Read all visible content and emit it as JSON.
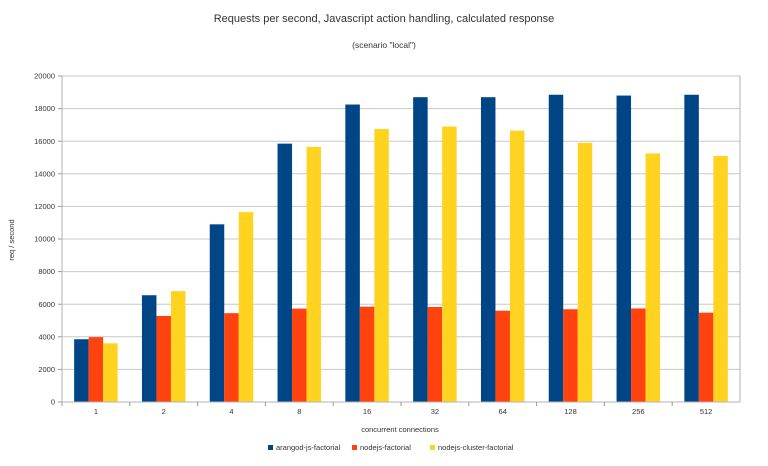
{
  "chart_data": {
    "type": "bar",
    "title": "Requests per second, Javascript action handling, calculated response",
    "subtitle": "(scenario \"local\")",
    "xlabel": "concurrent connections",
    "ylabel": "req / second",
    "ylim": [
      0,
      20000
    ],
    "yticks": [
      0,
      2000,
      4000,
      6000,
      8000,
      10000,
      12000,
      14000,
      16000,
      18000,
      20000
    ],
    "grid": true,
    "legend_position": "bottom",
    "categories": [
      "1",
      "2",
      "4",
      "8",
      "16",
      "32",
      "64",
      "128",
      "256",
      "512"
    ],
    "series": [
      {
        "name": "arangod-js-factorial",
        "color": "#004586",
        "values": [
          3850,
          6550,
          10900,
          15850,
          18250,
          18700,
          18700,
          18850,
          18800,
          18850
        ]
      },
      {
        "name": "nodejs-factorial",
        "color": "#ff420e",
        "values": [
          3980,
          5280,
          5450,
          5730,
          5850,
          5830,
          5600,
          5690,
          5740,
          5480
        ]
      },
      {
        "name": "nodejs-cluster-factorial",
        "color": "#ffd320",
        "values": [
          3600,
          6800,
          11650,
          15650,
          16750,
          16900,
          16650,
          15900,
          15250,
          15100
        ]
      }
    ]
  }
}
